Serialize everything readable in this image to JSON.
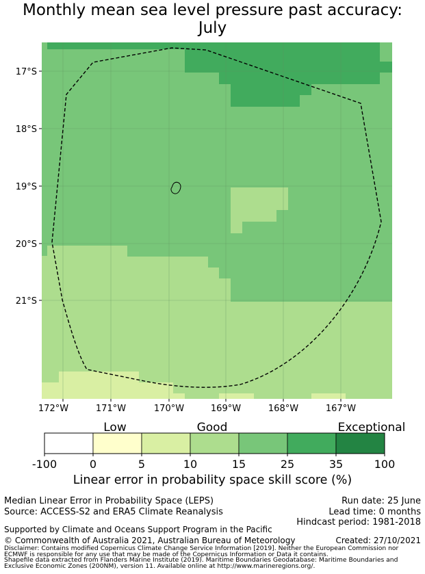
{
  "title_line1": "Monthly mean sea level pressure past accuracy:",
  "title_line2": "July",
  "map": {
    "lon_ticks": [
      "172°W",
      "171°W",
      "170°W",
      "169°W",
      "168°W",
      "167°W"
    ],
    "lat_ticks": [
      "17°S",
      "18°S",
      "19°S",
      "20°S",
      "21°S"
    ],
    "grid": true,
    "boundary_style": "dashed",
    "region_colors": {
      "band_5_10": "#d9efa3",
      "band_10_15": "#addd8e",
      "band_15_25": "#78c679",
      "band_25_35": "#41ab5d"
    }
  },
  "colorbar": {
    "categories": [
      {
        "label": "Low",
        "position": "over 0–5"
      },
      {
        "label": "Good",
        "position": "over 10–15"
      },
      {
        "label": "Exceptional",
        "position": "over 35–100"
      }
    ],
    "ticks": [
      "-100",
      "0",
      "5",
      "10",
      "15",
      "25",
      "35",
      "100"
    ],
    "colors": [
      "#ffffff",
      "#ffffcc",
      "#d9efa3",
      "#addd8e",
      "#78c679",
      "#41ab5d",
      "#238443"
    ],
    "caption": "Linear error in probability space skill score (%)"
  },
  "footer": {
    "method": "Median Linear Error in Probability Space (LEPS)",
    "source": "Source: ACCESS-S2 and ERA5 Climate Reanalysis",
    "run_date": "Run date: 25 June",
    "lead_time": "Lead time: 0 months",
    "hindcast": "Hindcast period: 1981-2018",
    "support": "Supported by Climate and Oceans Support Program in the Pacific",
    "copyright": "© Commonwealth of Australia 2021, Australian Bureau of Meteorology",
    "created": "Created: 27/10/2021",
    "disclaimer_1": "Disclaimer: Contains modified Copernicus Climate Change Service Information [2019]. Neither the European Commission nor",
    "disclaimer_2": "ECMWF is responsible for any use that may be made of the Copernicus Information or Data it contains.",
    "shapefile_1": "Shapefile data extracted from Flanders Marine Institute (2019). Maritime Boundaries Geodatabase: Maritime Boundaries and",
    "shapefile_2": "Exclusive Economic Zones (200NM), version 11. Available online at http://www.marineregions.org/."
  }
}
